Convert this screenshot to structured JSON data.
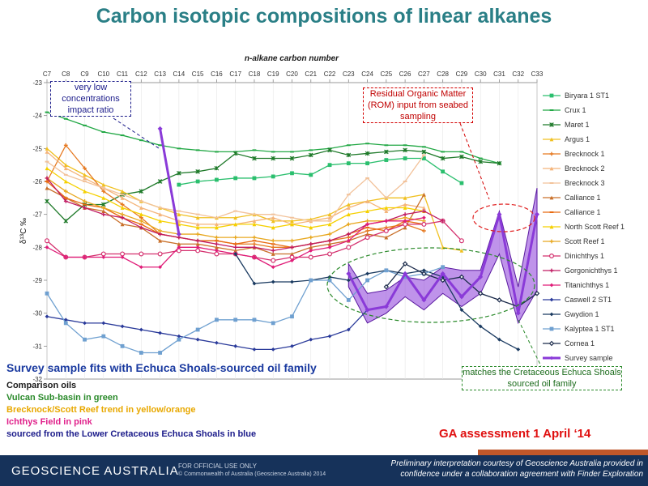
{
  "slide_title": "Carbon isotopic compositions of linear alkanes",
  "notes": {
    "low_conc": "very low concentrations impact ratio",
    "rom": "Residual Organic Matter (ROM) input from seabed sampling",
    "match": "matches the Cretaceous Echuca Shoals sourced oil family"
  },
  "fits_line": "Survey sample fits with Echuca Shoals-sourced oil family",
  "groups": [
    {
      "text": "Comparison oils",
      "color": "#1a1a1a"
    },
    {
      "text": "Vulcan Sub-basin in green",
      "color": "#2a8a2a"
    },
    {
      "text": "Brecknock/Scott Reef trend in yellow/orange",
      "color": "#e8a800"
    },
    {
      "text": "Ichthys Field in pink",
      "color": "#e0208a"
    },
    {
      "text": "sourced from the Lower Cretaceous Echuca Shoals in blue",
      "color": "#1b1b8a"
    }
  ],
  "assessment": "GA assessment 1 April ‘14",
  "footer": {
    "org": "GEOSCIENCE AUSTRALIA",
    "official": "FOR OFFICIAL USE ONLY",
    "copyright": "© Commonwealth of Australia (Geoscience Australia) 2014",
    "credit": "Preliminary interpretation courtesy of Geoscience Australia provided in confidence under a collaboration agreement with Finder Exploration"
  },
  "chart_data": {
    "type": "line",
    "title": "",
    "xlabel": "n-alkane carbon number",
    "ylabel": "δ¹³C ‰",
    "categories": [
      "C7",
      "C8",
      "C9",
      "C10",
      "C11",
      "C12",
      "C13",
      "C14",
      "C15",
      "C16",
      "C17",
      "C18",
      "C19",
      "C20",
      "C21",
      "C22",
      "C23",
      "C24",
      "C25",
      "C26",
      "C27",
      "C28",
      "C29",
      "C30",
      "C31",
      "C32",
      "C33"
    ],
    "ylim": [
      -32,
      -23
    ],
    "yticks": [
      "-23",
      "-24",
      "-25",
      "-26",
      "-27",
      "-28",
      "-29",
      "-30",
      "-31",
      "-32"
    ],
    "legend_position": "right",
    "series": [
      {
        "name": "Biryara 1 ST1",
        "color": "#2bbf6e",
        "marker": "square",
        "values": [
          null,
          null,
          null,
          null,
          null,
          null,
          null,
          -26.1,
          -26.0,
          -25.95,
          -25.9,
          -25.9,
          -25.85,
          -25.75,
          -25.8,
          -25.5,
          -25.45,
          -25.45,
          -25.35,
          -25.3,
          -25.3,
          -25.7,
          -26.05,
          null,
          null,
          null,
          null
        ]
      },
      {
        "name": "Crux 1",
        "color": "#22a845",
        "marker": "dash",
        "values": [
          -23.9,
          -24.1,
          -24.3,
          -24.5,
          -24.6,
          -24.75,
          -24.9,
          -25.0,
          -25.05,
          -25.1,
          -25.1,
          -25.05,
          -25.1,
          -25.1,
          -25.05,
          -25.0,
          -24.9,
          -24.85,
          -24.9,
          -24.9,
          -24.95,
          -25.1,
          -25.1,
          -25.3,
          -25.45,
          null,
          null
        ]
      },
      {
        "name": "Maret 1",
        "color": "#1f7a2a",
        "marker": "star",
        "values": [
          -26.6,
          -27.2,
          -26.7,
          -26.7,
          -26.4,
          -26.3,
          -26.0,
          -25.75,
          -25.7,
          -25.6,
          -25.15,
          -25.3,
          -25.3,
          -25.3,
          -25.2,
          -25.05,
          -25.2,
          -25.15,
          -25.1,
          -25.05,
          -25.1,
          -25.3,
          -25.25,
          -25.4,
          -25.45,
          null,
          null
        ]
      },
      {
        "name": "Argus 1",
        "color": "#f0c020",
        "marker": "triangle",
        "values": [
          -25.0,
          -25.5,
          -25.8,
          -26.1,
          -26.3,
          -26.6,
          -26.8,
          -27.0,
          -27.1,
          -27.1,
          -27.1,
          -27.0,
          -27.2,
          -27.2,
          -27.15,
          -27.0,
          -26.7,
          -26.6,
          -26.5,
          -26.5,
          -26.4,
          -28.0,
          -28.1,
          null,
          null,
          null,
          null
        ]
      },
      {
        "name": "Brecknock 1",
        "color": "#e67a22",
        "marker": "plus",
        "values": [
          -26.0,
          -24.9,
          -25.6,
          -26.3,
          -26.7,
          -27.1,
          -27.6,
          -27.7,
          -27.8,
          -27.8,
          -27.9,
          -27.9,
          -28.0,
          -28.0,
          -27.9,
          -27.8,
          -27.7,
          -27.5,
          -27.4,
          -27.3,
          -27.5,
          null,
          null,
          null,
          null,
          null,
          null
        ]
      },
      {
        "name": "Brecknock 2",
        "color": "#f4b47a",
        "marker": "triangle",
        "values": [
          -25.1,
          -25.6,
          -25.9,
          -26.2,
          -26.5,
          -26.8,
          -27.0,
          -27.2,
          -27.3,
          -27.3,
          -27.3,
          -27.2,
          -27.1,
          -27.3,
          -27.2,
          -27.1,
          -26.8,
          -26.6,
          -26.9,
          -26.7,
          -26.8,
          null,
          null,
          null,
          null,
          null,
          null
        ]
      },
      {
        "name": "Brecknock 3",
        "color": "#f2c29a",
        "marker": "dash",
        "values": [
          -25.4,
          -25.8,
          -26.0,
          -26.2,
          -26.4,
          -26.6,
          -26.8,
          -26.9,
          -27.0,
          -27.1,
          -26.9,
          -27.0,
          -27.0,
          -27.1,
          -27.2,
          -27.2,
          -26.4,
          -25.9,
          -26.5,
          -26.0,
          -25.2,
          null,
          null,
          null,
          null,
          null,
          null
        ]
      },
      {
        "name": "Calliance 1",
        "color": "#c9702a",
        "marker": "triangle",
        "values": [
          -26.2,
          -26.5,
          -26.8,
          -26.9,
          -27.3,
          -27.4,
          -27.8,
          -27.9,
          -27.9,
          -28.0,
          -28.1,
          -28.0,
          -28.2,
          -28.2,
          -28.0,
          -27.9,
          -27.8,
          -27.6,
          -27.7,
          -27.4,
          -26.4,
          null,
          null,
          null,
          null,
          null,
          null
        ]
      },
      {
        "name": "Calliance 1",
        "color": "#e86a10",
        "marker": "dash",
        "values": [
          -26.0,
          -26.5,
          -26.7,
          -26.8,
          -27.1,
          -27.3,
          -27.6,
          -27.7,
          -27.8,
          -27.8,
          -27.9,
          -27.8,
          -27.9,
          -28.0,
          -27.9,
          -27.8,
          -27.6,
          -27.4,
          -27.5,
          -27.2,
          -27.3,
          null,
          null,
          null,
          null,
          null,
          null
        ]
      },
      {
        "name": "North Scott Reef 1",
        "color": "#f5d000",
        "marker": "triangle",
        "values": [
          -25.6,
          -26.0,
          -26.3,
          -26.5,
          -26.8,
          -27.0,
          -27.2,
          -27.3,
          -27.4,
          -27.4,
          -27.3,
          -27.3,
          -27.4,
          -27.3,
          -27.4,
          -27.3,
          -27.0,
          -26.9,
          -26.8,
          -26.8,
          -26.9,
          null,
          null,
          null,
          null,
          null,
          null
        ]
      },
      {
        "name": "Scott Reef 1",
        "color": "#e8a820",
        "marker": "plus",
        "values": [
          -25.9,
          -26.3,
          -26.6,
          -26.8,
          -27.0,
          -27.2,
          -27.5,
          -27.6,
          -27.6,
          -27.7,
          -27.7,
          -27.7,
          -27.8,
          -27.8,
          -27.7,
          -27.6,
          -27.3,
          -27.2,
          -27.2,
          -27.1,
          -27.2,
          null,
          null,
          null,
          null,
          null,
          null
        ]
      },
      {
        "name": "Dinichthys 1",
        "color": "#d4306e",
        "marker": "circle",
        "values": [
          -27.8,
          -28.3,
          -28.3,
          -28.2,
          -28.2,
          -28.2,
          -28.2,
          -28.1,
          -28.1,
          -28.2,
          -28.2,
          -28.3,
          -28.4,
          -28.3,
          -28.3,
          -28.2,
          -28.0,
          -27.7,
          -27.5,
          -27.3,
          -27.3,
          -27.2,
          -27.8,
          null,
          null,
          null,
          null
        ]
      },
      {
        "name": "Gorgonichthys 1",
        "color": "#c01c64",
        "marker": "plus",
        "values": [
          -25.9,
          -26.6,
          -26.8,
          -27.0,
          -27.1,
          -27.4,
          -27.6,
          -27.7,
          -27.8,
          -27.9,
          -28.0,
          -28.0,
          -28.1,
          -28.0,
          -27.9,
          -27.8,
          -27.6,
          -27.3,
          -27.2,
          -27.0,
          -26.9,
          -27.2,
          null,
          null,
          null,
          null,
          null
        ]
      },
      {
        "name": "Titanichthys 1",
        "color": "#e01c78",
        "marker": "diamond",
        "values": [
          -28.0,
          -28.3,
          -28.3,
          -28.3,
          -28.3,
          -28.6,
          -28.6,
          -28.0,
          -28.0,
          -28.1,
          -28.2,
          -28.3,
          -28.6,
          -28.4,
          -28.1,
          -28.0,
          -27.8,
          -27.3,
          -27.2,
          -27.2,
          -27.1,
          null,
          null,
          null,
          null,
          null,
          null
        ]
      },
      {
        "name": "Caswell 2 ST1",
        "color": "#2a3a9a",
        "marker": "diamond",
        "values": [
          -30.1,
          -30.2,
          -30.3,
          -30.3,
          -30.4,
          -30.5,
          -30.6,
          -30.7,
          -30.8,
          -30.9,
          -31.0,
          -31.1,
          -31.1,
          -31.0,
          -30.8,
          -30.7,
          -30.5,
          -29.9,
          -29.8,
          null,
          null,
          null,
          null,
          null,
          null,
          null,
          null
        ]
      },
      {
        "name": "Gwydion 1",
        "color": "#1a3a60",
        "marker": "diamond",
        "values": [
          null,
          null,
          null,
          null,
          null,
          null,
          null,
          null,
          null,
          null,
          -28.2,
          -29.1,
          -29.05,
          -29.05,
          -29.0,
          -28.9,
          -29.0,
          -28.8,
          -28.7,
          -28.8,
          -28.7,
          -28.9,
          -29.9,
          -30.4,
          -30.8,
          -31.1,
          null
        ]
      },
      {
        "name": "Kalyptea 1 ST1",
        "color": "#6fa0d0",
        "marker": "square",
        "values": [
          -29.4,
          -30.3,
          -30.8,
          -30.7,
          -31.0,
          -31.2,
          -31.2,
          -30.8,
          -30.5,
          -30.2,
          -30.2,
          -30.2,
          -30.3,
          -30.1,
          -29.0,
          -29.0,
          -29.6,
          -29.0,
          -28.7,
          -28.9,
          -28.8,
          -28.6,
          null,
          null,
          null,
          null,
          null
        ]
      },
      {
        "name": "Cornea 1",
        "color": "#1a2a4a",
        "marker": "diamond-open",
        "values": [
          null,
          null,
          null,
          null,
          null,
          null,
          null,
          null,
          null,
          null,
          null,
          null,
          null,
          null,
          null,
          null,
          null,
          null,
          -29.2,
          -28.5,
          -28.8,
          -29.0,
          -28.9,
          -29.4,
          -29.6,
          -29.8,
          -29.4
        ]
      },
      {
        "name": "Survey sample",
        "color": "#8a3ad8",
        "marker": "diamond",
        "values": [
          null,
          null,
          null,
          null,
          null,
          null,
          -24.4,
          -27.6,
          null,
          null,
          null,
          null,
          null,
          null,
          null,
          null,
          -28.8,
          -29.9,
          -29.8,
          -28.8,
          -29.6,
          -28.8,
          -29.5,
          -28.9,
          -27.0,
          -30.0,
          -27.0
        ]
      }
    ],
    "survey_band": {
      "x": [
        "C23",
        "C24",
        "C25",
        "C26",
        "C27",
        "C28",
        "C29",
        "C30",
        "C31",
        "C32",
        "C33"
      ],
      "upper": [
        -28.5,
        -29.4,
        -29.3,
        -28.9,
        -29.0,
        -28.6,
        -28.7,
        -28.7,
        -26.9,
        -29.2,
        -26.2
      ],
      "lower": [
        -29.2,
        -30.3,
        -30.0,
        -29.5,
        -29.9,
        -29.4,
        -29.8,
        -29.4,
        -28.2,
        -30.3,
        -29.3
      ]
    }
  }
}
